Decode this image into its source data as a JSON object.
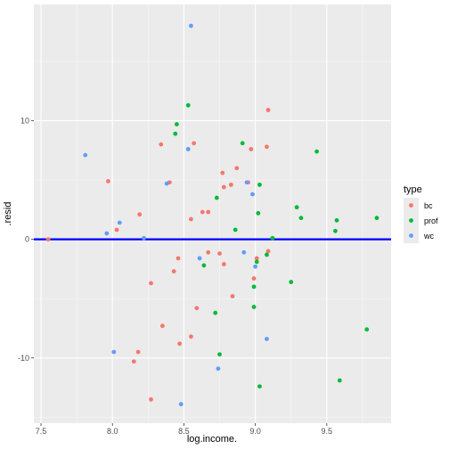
{
  "chart_data": {
    "type": "scatter",
    "title": "",
    "xlabel": "log.income.",
    "ylabel": ".resid",
    "xlim": [
      7.45,
      9.95
    ],
    "ylim": [
      -15.5,
      19.8
    ],
    "xticks": [
      7.5,
      8.0,
      8.5,
      9.0,
      9.5
    ],
    "xtick_labels": [
      "7.5",
      "8.0",
      "8.5",
      "9.0",
      "9.5"
    ],
    "yticks": [
      -10,
      0,
      10
    ],
    "ytick_labels": [
      "-10",
      "0",
      "10"
    ],
    "grid": true,
    "hline": {
      "y": 0,
      "color": "#0000ff"
    },
    "legend": {
      "title": "type",
      "position": "right"
    },
    "series": [
      {
        "name": "bc",
        "color": "#F8766D",
        "points": [
          [
            7.55,
            0.0
          ],
          [
            7.97,
            4.9
          ],
          [
            8.03,
            0.8
          ],
          [
            8.15,
            -10.3
          ],
          [
            8.18,
            -9.5
          ],
          [
            8.19,
            2.1
          ],
          [
            8.27,
            -3.7
          ],
          [
            8.27,
            -13.5
          ],
          [
            8.34,
            8.0
          ],
          [
            8.35,
            -7.3
          ],
          [
            8.4,
            4.8
          ],
          [
            8.43,
            -2.7
          ],
          [
            8.46,
            -1.6
          ],
          [
            8.47,
            -8.8
          ],
          [
            8.55,
            1.7
          ],
          [
            8.55,
            -8.2
          ],
          [
            8.57,
            8.1
          ],
          [
            8.59,
            -5.8
          ],
          [
            8.63,
            2.3
          ],
          [
            8.67,
            2.3
          ],
          [
            8.67,
            -1.1
          ],
          [
            8.75,
            -1.2
          ],
          [
            8.77,
            5.6
          ],
          [
            8.78,
            4.4
          ],
          [
            8.78,
            -2.1
          ],
          [
            8.83,
            4.6
          ],
          [
            8.84,
            -4.8
          ],
          [
            8.87,
            6.0
          ],
          [
            8.95,
            4.8
          ],
          [
            8.97,
            7.6
          ],
          [
            8.99,
            -3.3
          ],
          [
            9.01,
            -1.6
          ],
          [
            9.08,
            7.8
          ],
          [
            9.09,
            10.9
          ],
          [
            9.09,
            -1.0
          ]
        ]
      },
      {
        "name": "prof",
        "color": "#00BA38",
        "points": [
          [
            8.44,
            8.9
          ],
          [
            8.45,
            9.7
          ],
          [
            8.53,
            11.3
          ],
          [
            8.64,
            -2.2
          ],
          [
            8.72,
            -6.2
          ],
          [
            8.73,
            3.5
          ],
          [
            8.75,
            -9.7
          ],
          [
            8.86,
            0.8
          ],
          [
            8.91,
            8.1
          ],
          [
            8.99,
            -4.0
          ],
          [
            8.99,
            -5.7
          ],
          [
            9.01,
            -1.9
          ],
          [
            9.02,
            2.2
          ],
          [
            9.03,
            4.6
          ],
          [
            9.03,
            -12.4
          ],
          [
            9.08,
            -1.3
          ],
          [
            9.12,
            0.1
          ],
          [
            9.25,
            -3.6
          ],
          [
            9.29,
            2.7
          ],
          [
            9.32,
            1.8
          ],
          [
            9.43,
            7.4
          ],
          [
            9.56,
            0.7
          ],
          [
            9.57,
            1.6
          ],
          [
            9.59,
            -11.9
          ],
          [
            9.78,
            -7.6
          ],
          [
            9.85,
            1.8
          ]
        ]
      },
      {
        "name": "wc",
        "color": "#619CFF",
        "points": [
          [
            7.81,
            7.1
          ],
          [
            7.96,
            0.5
          ],
          [
            8.01,
            -9.5
          ],
          [
            8.05,
            1.4
          ],
          [
            8.22,
            0.1
          ],
          [
            8.38,
            4.7
          ],
          [
            8.48,
            -13.9
          ],
          [
            8.53,
            7.6
          ],
          [
            8.55,
            18.0
          ],
          [
            8.61,
            -1.6
          ],
          [
            8.74,
            -10.9
          ],
          [
            8.92,
            -1.1
          ],
          [
            8.94,
            4.8
          ],
          [
            8.98,
            3.8
          ],
          [
            9.0,
            -2.3
          ],
          [
            9.08,
            -8.4
          ]
        ]
      }
    ]
  }
}
